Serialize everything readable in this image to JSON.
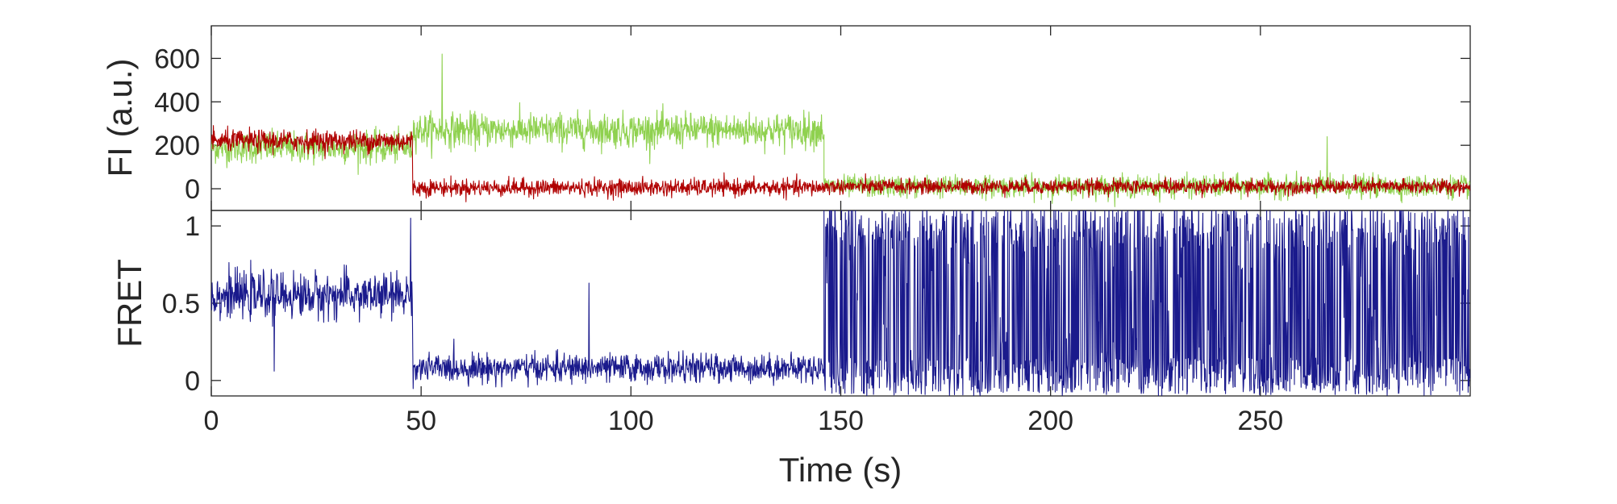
{
  "chart_data": [
    {
      "type": "line",
      "panel": "intensity",
      "ylabel": "FI (a.u.)",
      "xlabel": "",
      "xlim": [
        0,
        300
      ],
      "ylim": [
        -100,
        750
      ],
      "yticks": [
        0,
        200,
        400,
        600
      ],
      "ytick_labels": [
        "0",
        "200",
        "400",
        "600"
      ],
      "grid": false,
      "series": [
        {
          "color": "#8fd14f",
          "segments": [
            {
              "x": [
                0,
                48
              ],
              "mean": 190,
              "noise": 65
            },
            {
              "x": [
                48,
                146
              ],
              "mean": 270,
              "noise": 70
            },
            {
              "x": [
                146,
                300
              ],
              "mean": 10,
              "noise": 45
            }
          ],
          "peaks": [
            {
              "x": 55,
              "y": 620
            },
            {
              "x": 266,
              "y": 240
            }
          ]
        },
        {
          "color": "#b00000",
          "segments": [
            {
              "x": [
                0,
                48
              ],
              "mean": 220,
              "noise": 45
            },
            {
              "x": [
                48,
                146
              ],
              "mean": 5,
              "noise": 35
            },
            {
              "x": [
                146,
                300
              ],
              "mean": 10,
              "noise": 30
            }
          ],
          "peaks": []
        }
      ]
    },
    {
      "type": "line",
      "panel": "fret",
      "ylabel": "FRET",
      "xlabel": "Time (s)",
      "xlim": [
        0,
        300
      ],
      "ylim": [
        -0.1,
        1.1
      ],
      "yticks": [
        0,
        0.5,
        1
      ],
      "ytick_labels": [
        "0",
        "0.5",
        "1"
      ],
      "xticks": [
        0,
        50,
        100,
        150,
        200,
        250
      ],
      "xtick_labels": [
        "0",
        "50",
        "100",
        "150",
        "200",
        "250"
      ],
      "grid": false,
      "series": [
        {
          "color": "#1a1a8c",
          "segments": [
            {
              "x": [
                0,
                48
              ],
              "mean": 0.55,
              "noise": 0.13
            },
            {
              "x": [
                48,
                146
              ],
              "mean": 0.08,
              "noise": 0.08
            },
            {
              "x": [
                146,
                300
              ],
              "mean": 0.5,
              "noise": 0.6
            }
          ],
          "peaks": [
            {
              "x": 47.5,
              "y": 1.05
            },
            {
              "x": 90,
              "y": 0.63
            },
            {
              "x": 15,
              "y": 0.06
            }
          ]
        }
      ]
    }
  ]
}
